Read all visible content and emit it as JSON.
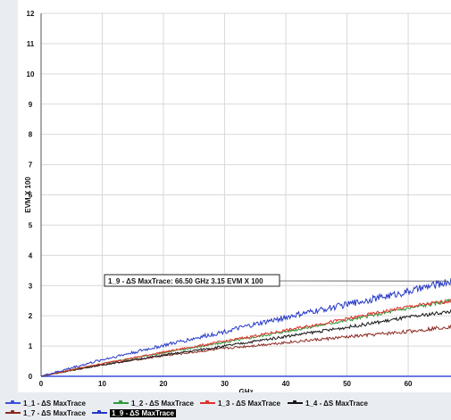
{
  "chart_data": {
    "type": "line",
    "title": "",
    "xlabel": "GHz",
    "ylabel": "EVM X 100",
    "xlim": [
      0,
      67
    ],
    "ylim": [
      0,
      12
    ],
    "x_ticks": [
      "0",
      "10",
      "20",
      "30",
      "40",
      "50",
      "60"
    ],
    "y_ticks": [
      "0",
      "1",
      "2",
      "3",
      "4",
      "5",
      "6",
      "7",
      "8",
      "9",
      "10",
      "11",
      "12"
    ],
    "grid": true,
    "legend_position": "bottom",
    "series": [
      {
        "name": "1_1 - ΔS MaxTrace",
        "color": "#3a4fd8",
        "x": [
          0,
          5,
          10,
          20,
          30,
          40,
          50,
          60,
          67
        ],
        "y": [
          0,
          0,
          0,
          0,
          0,
          0,
          0,
          0,
          0
        ]
      },
      {
        "name": "1_2 - ΔS MaxTrace",
        "color": "#2e9a3a",
        "x": [
          0,
          5,
          10,
          20,
          30,
          40,
          50,
          60,
          67
        ],
        "y": [
          0,
          0.22,
          0.42,
          0.78,
          1.12,
          1.48,
          1.85,
          2.25,
          2.5
        ]
      },
      {
        "name": "1_3 - ΔS MaxTrace",
        "color": "#e0302a",
        "x": [
          0,
          5,
          10,
          20,
          30,
          40,
          50,
          60,
          67
        ],
        "y": [
          0,
          0.22,
          0.42,
          0.8,
          1.16,
          1.52,
          1.9,
          2.3,
          2.5
        ]
      },
      {
        "name": "1_4 - ΔS MaxTrace",
        "color": "#151515",
        "x": [
          0,
          5,
          10,
          20,
          30,
          40,
          50,
          60,
          67
        ],
        "y": [
          0,
          0.2,
          0.38,
          0.7,
          1.0,
          1.32,
          1.62,
          1.95,
          2.15
        ]
      },
      {
        "name": "1_7 - ΔS MaxTrace",
        "color": "#8b2a22",
        "x": [
          0,
          5,
          10,
          20,
          30,
          40,
          50,
          60,
          67
        ],
        "y": [
          0,
          0.2,
          0.38,
          0.68,
          0.92,
          1.12,
          1.3,
          1.48,
          1.65
        ]
      },
      {
        "name": "1_9 - ΔS MaxTrace",
        "color": "#2438c8",
        "x": [
          0,
          5,
          10,
          20,
          30,
          40,
          50,
          60,
          67
        ],
        "y": [
          0,
          0.28,
          0.55,
          1.02,
          1.48,
          1.95,
          2.38,
          2.8,
          3.15
        ]
      }
    ],
    "selected_series": "1_9 - ΔS MaxTrace",
    "annotation": {
      "text": "1_9 - ΔS MaxTrace: 66.50 GHz 3.15 EVM X 100",
      "x": 66.5,
      "y": 3.15
    }
  },
  "legend": {
    "items": [
      {
        "label": "1_1 - ΔS MaxTrace",
        "color": "#3a4fd8"
      },
      {
        "label": "1_2 - ΔS MaxTrace",
        "color": "#2e9a3a"
      },
      {
        "label": "1_3 - ΔS MaxTrace",
        "color": "#e0302a"
      },
      {
        "label": "1_4 - ΔS MaxTrace",
        "color": "#151515"
      },
      {
        "label": "1_7 - ΔS MaxTrace",
        "color": "#8b2a22"
      },
      {
        "label": "1_9 - ΔS MaxTrace",
        "color": "#2438c8"
      }
    ]
  }
}
